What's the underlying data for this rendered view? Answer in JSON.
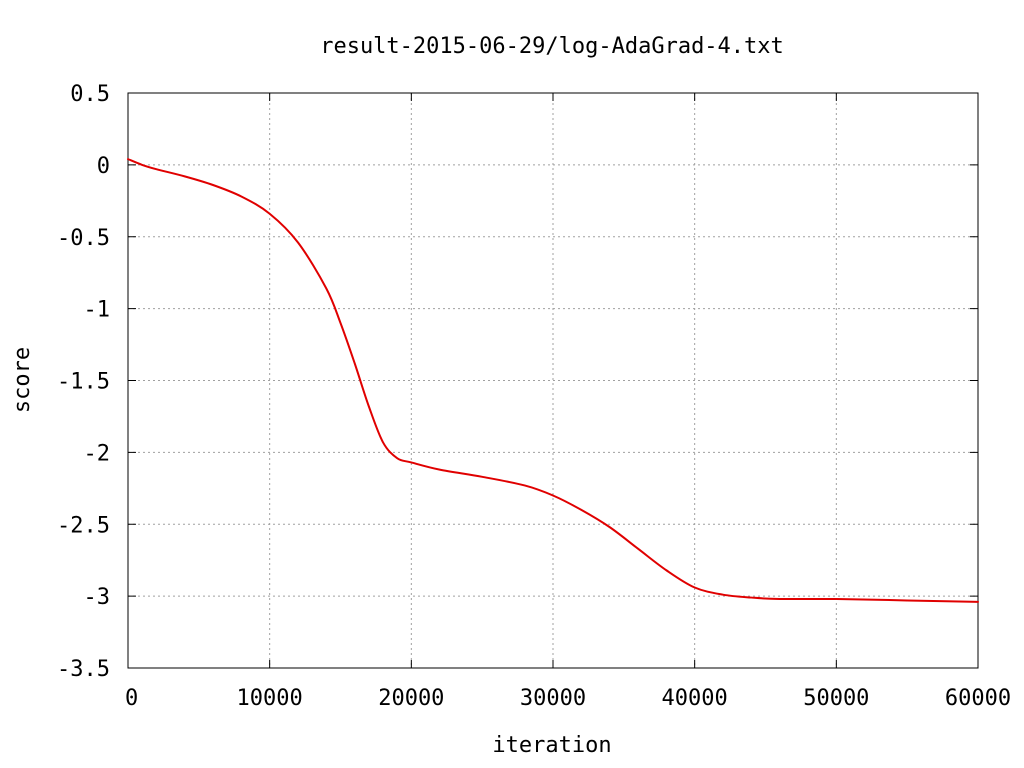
{
  "chart_data": {
    "type": "line",
    "title": "result-2015-06-29/log-AdaGrad-4.txt",
    "xlabel": "iteration",
    "ylabel": "score",
    "xlim": [
      0,
      60000
    ],
    "ylim": [
      -3.5,
      0.5
    ],
    "grid": true,
    "x_ticks": [
      0,
      10000,
      20000,
      30000,
      40000,
      50000,
      60000
    ],
    "x_tick_labels": [
      "0",
      "10000",
      "20000",
      "30000",
      "40000",
      "50000",
      "60000"
    ],
    "y_ticks": [
      0.5,
      0,
      -0.5,
      -1,
      -1.5,
      -2,
      -2.5,
      -3,
      -3.5
    ],
    "y_tick_labels": [
      "0.5",
      "0",
      "-0.5",
      "-1",
      "-1.5",
      "-2",
      "-2.5",
      "-3",
      "-3.5"
    ],
    "series": [
      {
        "color": "#e00000",
        "x": [
          0,
          1000,
          2000,
          4000,
          6000,
          8000,
          10000,
          12000,
          14000,
          15000,
          16000,
          17000,
          18000,
          19000,
          20000,
          22000,
          25000,
          28000,
          30000,
          32000,
          34000,
          36000,
          38000,
          40000,
          42000,
          44000,
          46000,
          50000,
          55000,
          60000
        ],
        "y": [
          0.04,
          0.0,
          -0.03,
          -0.08,
          -0.14,
          -0.22,
          -0.34,
          -0.54,
          -0.86,
          -1.1,
          -1.38,
          -1.68,
          -1.93,
          -2.04,
          -2.07,
          -2.12,
          -2.17,
          -2.23,
          -2.3,
          -2.4,
          -2.52,
          -2.67,
          -2.82,
          -2.94,
          -2.99,
          -3.01,
          -3.02,
          -3.02,
          -3.03,
          -3.04
        ]
      }
    ]
  }
}
